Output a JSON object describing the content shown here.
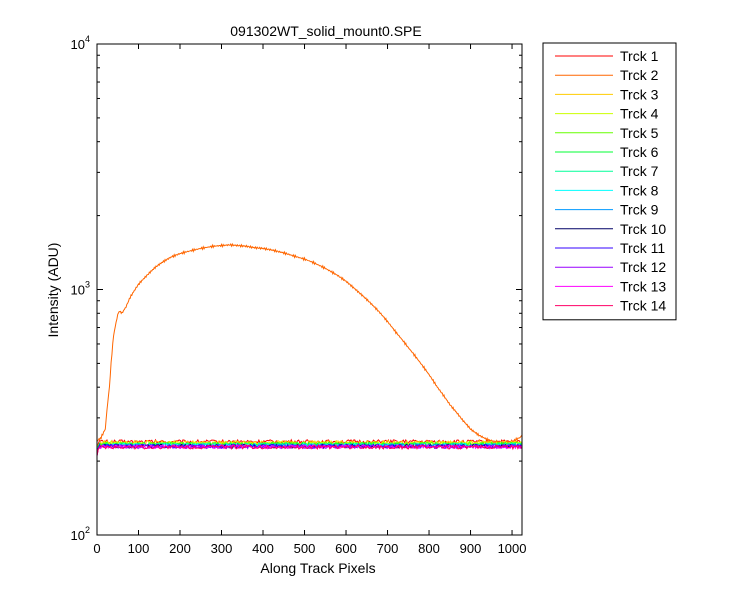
{
  "chart_data": {
    "type": "line",
    "title": "091302WT_solid_mount0.SPE",
    "xlabel": "Along Track Pixels",
    "ylabel": "Intensity (ADU)",
    "xlim": [
      0,
      1024
    ],
    "ylim": [
      100,
      10000
    ],
    "yscale": "log",
    "grid": false,
    "legend_position": "outside-right",
    "x_ticks": [
      "0",
      "100",
      "200",
      "300",
      "400",
      "500",
      "600",
      "700",
      "800",
      "900",
      "1000"
    ],
    "y_ticks": [
      {
        "base": "10",
        "exp": "2"
      },
      {
        "base": "10",
        "exp": "3"
      },
      {
        "base": "10",
        "exp": "4"
      }
    ],
    "series": [
      {
        "name": "Trck 1",
        "color": "#ff0000",
        "level": 240,
        "x": [
          0,
          1024
        ],
        "y": [
          240,
          240
        ]
      },
      {
        "name": "Trck 2",
        "color": "#ff6600",
        "x": [
          0,
          5,
          10,
          20,
          30,
          40,
          50,
          55,
          60,
          70,
          80,
          90,
          100,
          120,
          140,
          160,
          180,
          200,
          220,
          250,
          280,
          300,
          320,
          340,
          360,
          380,
          400,
          420,
          450,
          480,
          500,
          520,
          550,
          580,
          600,
          620,
          650,
          680,
          700,
          720,
          750,
          780,
          800,
          820,
          850,
          880,
          900,
          920,
          940,
          960,
          980,
          1000,
          1010,
          1020,
          1024
        ],
        "y": [
          240,
          245,
          250,
          270,
          400,
          650,
          790,
          820,
          800,
          850,
          930,
          990,
          1050,
          1140,
          1230,
          1300,
          1360,
          1400,
          1430,
          1470,
          1500,
          1510,
          1520,
          1510,
          1500,
          1480,
          1470,
          1450,
          1410,
          1360,
          1330,
          1290,
          1220,
          1140,
          1080,
          1010,
          910,
          810,
          740,
          670,
          580,
          500,
          450,
          400,
          340,
          295,
          270,
          255,
          245,
          240,
          238,
          240,
          245,
          250,
          255
        ]
      },
      {
        "name": "Trck 3",
        "color": "#ffcc00",
        "level": 238,
        "x": [
          0,
          1024
        ],
        "y": [
          238,
          238
        ]
      },
      {
        "name": "Trck 4",
        "color": "#ccff00",
        "level": 236,
        "x": [
          0,
          1024
        ],
        "y": [
          236,
          236
        ]
      },
      {
        "name": "Trck 5",
        "color": "#66ff00",
        "level": 235,
        "x": [
          0,
          1024
        ],
        "y": [
          235,
          235
        ]
      },
      {
        "name": "Trck 6",
        "color": "#00ff33",
        "level": 234,
        "x": [
          0,
          1024
        ],
        "y": [
          234,
          234
        ]
      },
      {
        "name": "Trck 7",
        "color": "#00ff99",
        "level": 233,
        "x": [
          0,
          1024
        ],
        "y": [
          233,
          233
        ]
      },
      {
        "name": "Trck 8",
        "color": "#00ffff",
        "level": 232,
        "x": [
          0,
          1024
        ],
        "y": [
          232,
          232
        ]
      },
      {
        "name": "Trck 9",
        "color": "#0099ff",
        "level": 231,
        "x": [
          0,
          1024
        ],
        "y": [
          231,
          231
        ]
      },
      {
        "name": "Trck 10",
        "color": "#000066",
        "level": 230,
        "x": [
          0,
          1024
        ],
        "y": [
          230,
          230
        ]
      },
      {
        "name": "Trck 11",
        "color": "#3300ff",
        "level": 230,
        "x": [
          0,
          1024
        ],
        "y": [
          230,
          230
        ]
      },
      {
        "name": "Trck 12",
        "color": "#9900ff",
        "level": 229,
        "x": [
          0,
          1024
        ],
        "y": [
          229,
          229
        ]
      },
      {
        "name": "Trck 13",
        "color": "#ff00ff",
        "level": 229,
        "x": [
          0,
          1024
        ],
        "y": [
          229,
          229
        ]
      },
      {
        "name": "Trck 14",
        "color": "#ff0066",
        "level": 228,
        "x": [
          0,
          1024
        ],
        "y": [
          228,
          228
        ]
      }
    ]
  }
}
